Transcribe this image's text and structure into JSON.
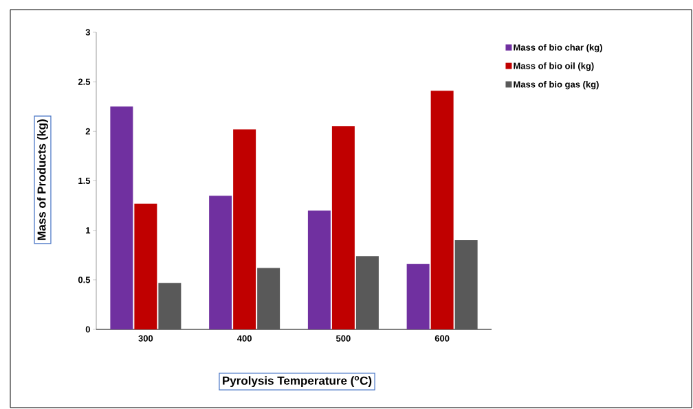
{
  "chart_data": {
    "type": "bar",
    "xlabel": "Pyrolysis Temperature ($^{o}$C)",
    "ylabel": "Mass of Products (kg)",
    "categories": [
      "300",
      "400",
      "500",
      "600"
    ],
    "series": [
      {
        "name": "Mass of bio char (kg)",
        "color": "#7030a0",
        "values": [
          2.25,
          1.35,
          1.2,
          0.66
        ]
      },
      {
        "name": "Mass of bio oil (kg)",
        "color": "#c00000",
        "values": [
          1.27,
          2.02,
          2.05,
          2.41
        ]
      },
      {
        "name": "Mass of bio gas (kg)",
        "color": "#595959",
        "values": [
          0.47,
          0.62,
          0.74,
          0.9
        ]
      }
    ],
    "ylim": [
      0,
      3
    ],
    "yticks": [
      0,
      0.5,
      1,
      1.5,
      2,
      2.5,
      3
    ],
    "grid": false,
    "legend": "right"
  }
}
